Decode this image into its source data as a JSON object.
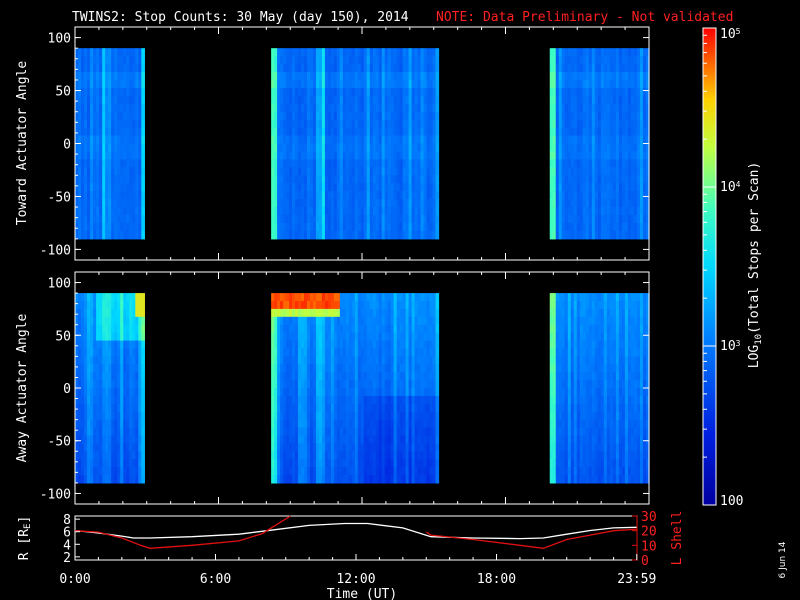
{
  "header": {
    "title": "TWINS2: Stop Counts: 30 May (day 150), 2014",
    "note": "NOTE: Data Preliminary - Not validated",
    "stamp": "6 Jun 14"
  },
  "colors": {
    "background": "#000000",
    "axes": "#ffffff",
    "note": "#ff2020",
    "l_shell": "#e01010",
    "radius": "#ffffff"
  },
  "chart_data": [
    {
      "type": "heatmap",
      "panel": "toward",
      "ylabel": "Toward Actuator Angle",
      "ylim": [
        -110,
        110
      ],
      "yticks": [
        -100,
        -50,
        0,
        50,
        100
      ],
      "xlim": [
        0,
        24
      ],
      "data_y_range": [
        -90,
        90
      ],
      "log_scale": true,
      "data_intervals_hours": [
        [
          0,
          2.9
        ],
        [
          8.2,
          15.2
        ],
        [
          19.85,
          24
        ]
      ]
    },
    {
      "type": "heatmap",
      "panel": "away",
      "ylabel": "Away Actuator Angle",
      "ylim": [
        -110,
        110
      ],
      "yticks": [
        -100,
        -50,
        0,
        50,
        100
      ],
      "xlim": [
        0,
        24
      ],
      "data_y_range": [
        -90,
        90
      ],
      "log_scale": true,
      "data_intervals_hours": [
        [
          0,
          2.9
        ],
        [
          8.2,
          15.2
        ],
        [
          19.85,
          24
        ]
      ]
    },
    {
      "type": "line",
      "panel": "orbit",
      "xlabel": "Time (UT)",
      "xticks": [
        "0:00",
        "6:00",
        "12:00",
        "18:00",
        "23:59"
      ],
      "xlim": [
        0,
        24
      ],
      "y_left": {
        "label": "R [R",
        "label_sub": "E",
        "label_end": "]",
        "ticks": [
          2,
          4,
          6,
          8
        ],
        "lim": [
          1.5,
          8.5
        ]
      },
      "y_right": {
        "label": "L Shell",
        "ticks": [
          0,
          10,
          20,
          30
        ],
        "lim": [
          0,
          30
        ]
      },
      "series": [
        {
          "name": "R [RE]",
          "axis": "left",
          "x": [
            0,
            1,
            2,
            2.5,
            3.2,
            5,
            7,
            8.5,
            10,
            11.5,
            12.5,
            14,
            15.2,
            17,
            19,
            20,
            21,
            22,
            23,
            23.99
          ],
          "y": [
            6.2,
            5.8,
            5.3,
            5.0,
            5.0,
            5.2,
            5.6,
            6.3,
            7.0,
            7.3,
            7.3,
            6.6,
            5.2,
            5.0,
            4.9,
            5.0,
            5.6,
            6.2,
            6.6,
            6.7
          ]
        },
        {
          "name": "L Shell",
          "axis": "right",
          "x": [
            0,
            1,
            2,
            2.8,
            3.2,
            5,
            7,
            8,
            8.7,
            9.2,
            14.3,
            15,
            15.2,
            17,
            19,
            20,
            21,
            22,
            23,
            23.99
          ],
          "y": [
            20,
            19,
            15,
            10,
            8,
            10,
            13,
            18,
            25,
            30,
            30,
            19,
            17,
            14,
            10,
            8,
            14,
            17,
            20,
            21
          ]
        }
      ]
    }
  ],
  "colorbar": {
    "label_pre": "LOG",
    "label_sub": "10",
    "label_post": "(Total Stops per Scan)",
    "ticks": [
      {
        "value": 100,
        "label": "100"
      },
      {
        "value": 1000,
        "base": "10",
        "exp": "3"
      },
      {
        "value": 10000,
        "base": "10",
        "exp": "4"
      },
      {
        "value": 100000,
        "base": "10",
        "exp": "5"
      }
    ],
    "lim": [
      100,
      100000
    ]
  }
}
